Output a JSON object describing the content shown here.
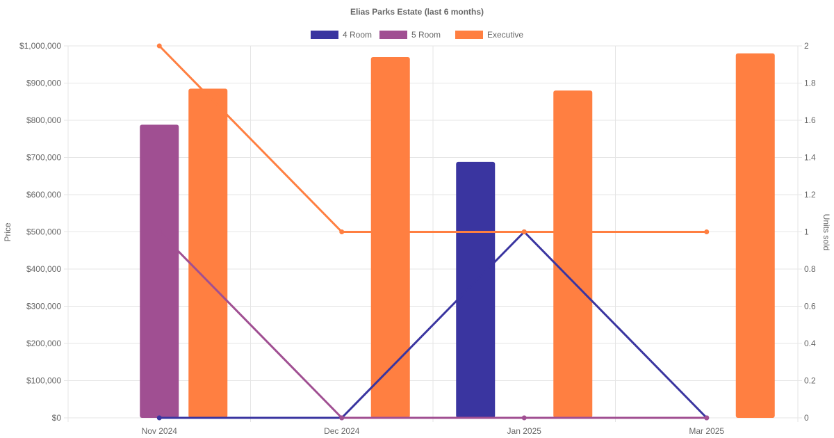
{
  "chart_data": {
    "type": "bar",
    "title": "Elias Parks Estate (last 6 months)",
    "categories": [
      "Nov 2024",
      "Dec 2024",
      "Jan 2025",
      "Mar 2025"
    ],
    "left_axis": {
      "label": "Price",
      "ylim": [
        0,
        1000000
      ],
      "ticks": [
        "$0",
        "$100,000",
        "$200,000",
        "$300,000",
        "$400,000",
        "$500,000",
        "$600,000",
        "$700,000",
        "$800,000",
        "$900,000",
        "$1,000,000"
      ]
    },
    "right_axis": {
      "label": "Units sold",
      "ylim": [
        0,
        2
      ],
      "ticks": [
        "0",
        "0.2",
        "0.4",
        "0.6",
        "0.8",
        "1",
        "1.2",
        "1.4",
        "1.6",
        "1.8",
        "2"
      ]
    },
    "grid": true,
    "legend_position": "top-center",
    "series": [
      {
        "name": "4 Room",
        "color": "#3a35a0",
        "prices": [
          null,
          null,
          688000,
          null
        ],
        "units": [
          0,
          0,
          1,
          0
        ]
      },
      {
        "name": "5 Room",
        "color": "#a04f92",
        "prices": [
          788000,
          null,
          null,
          null
        ],
        "units": [
          1,
          0,
          0,
          0
        ]
      },
      {
        "name": "Executive",
        "color": "#ff7f41",
        "prices": [
          885000,
          970000,
          880000,
          980000
        ],
        "units": [
          2,
          1,
          1,
          1
        ]
      }
    ]
  }
}
